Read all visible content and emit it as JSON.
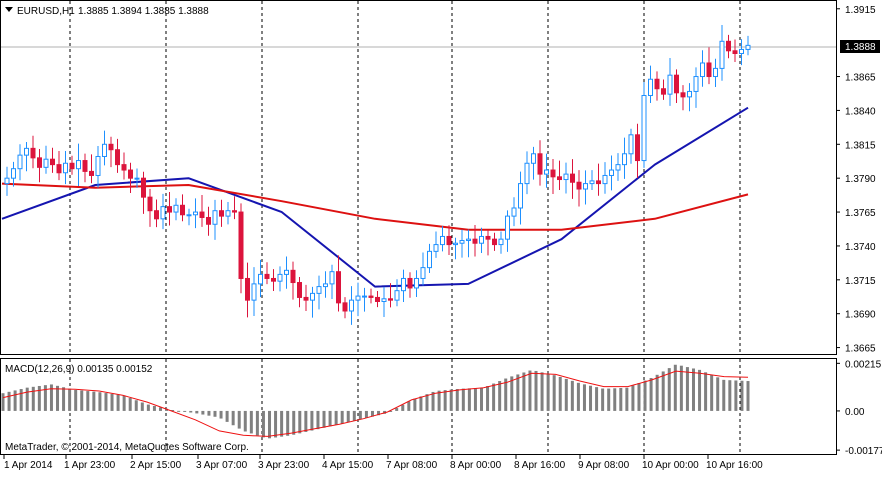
{
  "header": {
    "symbol": "EURUSD,H1",
    "ohlc": "1.3885 1.3894 1.3885 1.3888"
  },
  "main_price": {
    "label": "1.3888",
    "value": 1.3888
  },
  "watermark": "MetaTrader, © 2001-2014, MetaQuotes Software Corp.",
  "macd": {
    "label": "MACD(12,26,9) 0.00135 0.00152"
  },
  "colors": {
    "bull": "#1e90ff",
    "bear": "#dc143c",
    "ma_fast": "#1515b0",
    "ma_slow": "#dd1111",
    "macd_hist": "#808080",
    "macd_signal": "#ee1111",
    "grid": "#000000"
  },
  "chart_data": [
    {
      "type": "candlestick",
      "series": [
        {
          "name": "EURUSD,H1",
          "values": [
            1.379,
            1.3797,
            1.3807,
            1.3812,
            1.3805,
            1.3798,
            1.3804,
            1.38,
            1.3794,
            1.3801,
            1.3797,
            1.3803,
            1.3795,
            1.3792,
            1.3806,
            1.3815,
            1.3811,
            1.38,
            1.3796,
            1.379,
            1.379,
            1.3776,
            1.3766,
            1.376,
            1.3769,
            1.3765,
            1.377,
            1.3763,
            1.3763,
            1.3765,
            1.3761,
            1.3756,
            1.3766,
            1.3762,
            1.3766,
            1.3765,
            1.3716,
            1.37,
            1.3712,
            1.3719,
            1.3716,
            1.3714,
            1.3719,
            1.3722,
            1.3713,
            1.3702,
            1.37,
            1.3705,
            1.371,
            1.3712,
            1.3721,
            1.3698,
            1.3692,
            1.37,
            1.3703,
            1.3703,
            1.3702,
            1.3699,
            1.3701,
            1.37,
            1.3707,
            1.3716,
            1.3709,
            1.3716,
            1.3724,
            1.3736,
            1.3741,
            1.3747,
            1.3741,
            1.3742,
            1.3744,
            1.3745,
            1.3742,
            1.3747,
            1.3745,
            1.3741,
            1.3745,
            1.3762,
            1.3768,
            1.3786,
            1.3801,
            1.3808,
            1.3793,
            1.3796,
            1.3791,
            1.3789,
            1.3793,
            1.3787,
            1.3782,
            1.3786,
            1.3788,
            1.3786,
            1.3792,
            1.3796,
            1.38,
            1.3808,
            1.3822,
            1.3803,
            1.3851,
            1.3863,
            1.3856,
            1.3852,
            1.3866,
            1.3853,
            1.385,
            1.3854,
            1.3865,
            1.3875,
            1.3865,
            1.3871,
            1.3891,
            1.3884,
            1.3882,
            1.3885,
            1.3888
          ],
          "open_first": 1.3786,
          "high_low_pad_note": "candles built from close path"
        }
      ],
      "overlays": [
        {
          "kind": "moving-average",
          "period_role": "fast",
          "values": [
            1.376,
            1.3785,
            1.379,
            1.3765,
            1.371,
            1.3712,
            1.3745,
            1.38,
            1.3842
          ]
        },
        {
          "kind": "moving-average",
          "period_role": "slow",
          "values": [
            1.3786,
            1.3783,
            1.3785,
            1.3773,
            1.376,
            1.3752,
            1.3752,
            1.376,
            1.3778
          ]
        }
      ],
      "y_ticks": [
        "1.3915",
        "1.3888",
        "1.3865",
        "1.3840",
        "1.3815",
        "1.3790",
        "1.3765",
        "1.3740",
        "1.3715",
        "1.3690",
        "1.3665"
      ],
      "x_ticks": [
        "1 Apr 2014",
        "1 Apr 23:00",
        "2 Apr 15:00",
        "3 Apr 07:00",
        "3 Apr 23:00",
        "4 Apr 15:00",
        "7 Apr 08:00",
        "8 Apr 00:00",
        "8 Apr 16:00",
        "9 Apr 08:00",
        "10 Apr 00:00",
        "10 Apr 16:00"
      ],
      "ylim": [
        1.3661,
        1.392
      ],
      "grid": true
    },
    {
      "type": "bar",
      "series": [
        {
          "name": "MACD",
          "values": [
            0.0008,
            0.00105,
            0.0012,
            0.00095,
            0.00085,
            0.0007,
            0.0003,
            5e-05,
            -0.0001,
            -0.0003,
            -0.0009,
            -0.00125,
            -0.0011,
            -0.00085,
            -0.0006,
            -0.00035,
            -0.0001,
            0.0005,
            0.0009,
            0.001,
            0.00105,
            0.0015,
            0.00185,
            0.0016,
            0.00125,
            0.001,
            0.00105,
            0.0015,
            0.0021,
            0.00185,
            0.0014,
            0.00135
          ]
        },
        {
          "name": "Signal",
          "values": [
            0.0006,
            0.00085,
            0.001,
            0.00098,
            0.0009,
            0.0007,
            0.0004,
            0.0,
            -0.0004,
            -0.0009,
            -0.0011,
            -0.00115,
            -0.001,
            -0.0008,
            -0.0006,
            -0.00035,
            -5e-05,
            0.0005,
            0.0008,
            0.00095,
            0.00105,
            0.0013,
            0.0017,
            0.00165,
            0.00135,
            0.0011,
            0.0011,
            0.0014,
            0.0018,
            0.0017,
            0.00155,
            0.00152
          ]
        }
      ],
      "y_ticks": [
        "0.00215",
        "0.00",
        "-0.00177"
      ],
      "ylim": [
        -0.0019,
        0.0023
      ]
    }
  ]
}
